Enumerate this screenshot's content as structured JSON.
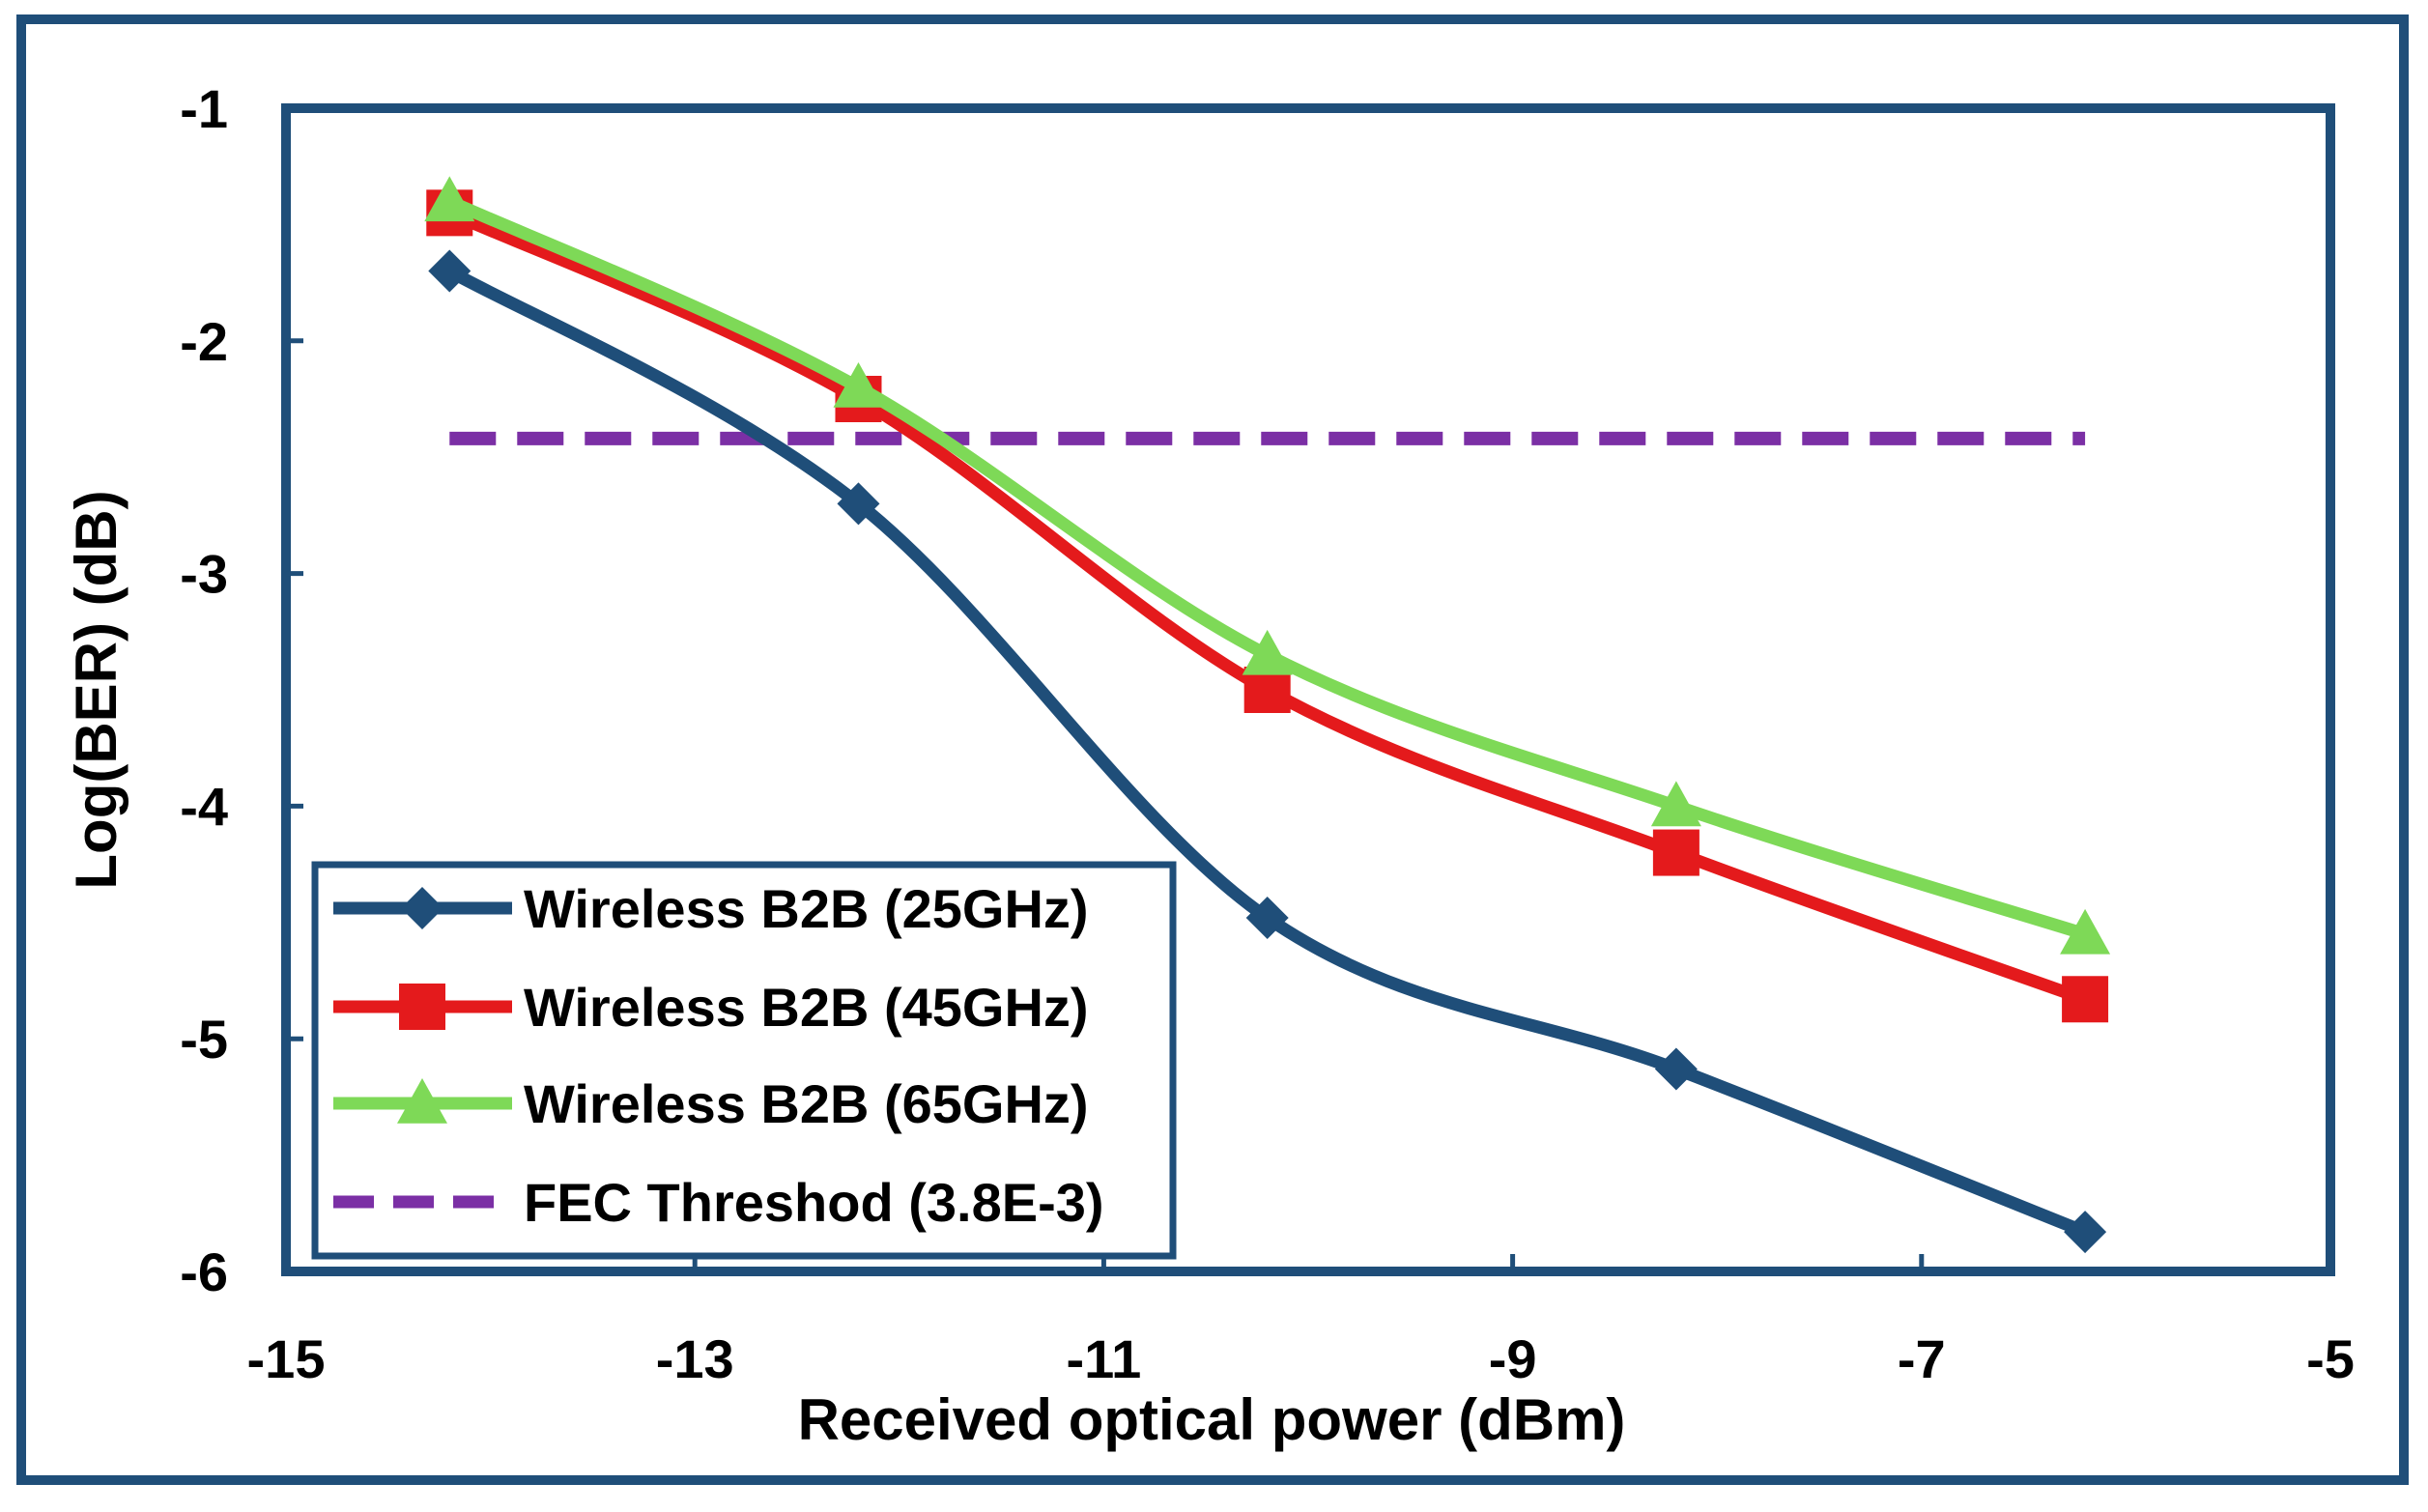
{
  "chart_data": {
    "type": "line",
    "title": "",
    "xlabel": "Received optical power (dBm)",
    "ylabel": "Log(BER) (dB)",
    "xlim": [
      -15,
      -5
    ],
    "ylim": [
      -6,
      -1
    ],
    "xticks": [
      -15,
      -13,
      -11,
      -9,
      -7,
      -5
    ],
    "yticks": [
      -1,
      -2,
      -3,
      -4,
      -5,
      -6
    ],
    "xtick_labels": [
      "-15",
      "-13",
      "-11",
      "-9",
      "-7",
      "-5"
    ],
    "ytick_labels": [
      "-1",
      "-2",
      "-3",
      "-4",
      "-5",
      "-6"
    ],
    "grid": false,
    "legend_position": "bottom-left",
    "series": [
      {
        "name": "Wireless B2B (25GHz)",
        "color": "#1f4e79",
        "marker": "diamond",
        "line_style": "solid",
        "x": [
          -14.2,
          -12.2,
          -10.2,
          -8.2,
          -6.2
        ],
        "y": [
          -1.7,
          -2.7,
          -4.48,
          -5.13,
          -5.83
        ]
      },
      {
        "name": "Wireless B2B (45GHz)",
        "color": "#e41a1c",
        "marker": "square",
        "line_style": "solid",
        "x": [
          -14.2,
          -12.2,
          -10.2,
          -8.2,
          -6.2
        ],
        "y": [
          -1.45,
          -2.25,
          -3.5,
          -4.2,
          -4.83
        ]
      },
      {
        "name": "Wireless B2B (65GHz)",
        "color": "#7ed957",
        "marker": "triangle",
        "line_style": "solid",
        "x": [
          -14.2,
          -12.2,
          -10.2,
          -8.2,
          -6.2
        ],
        "y": [
          -1.4,
          -2.2,
          -3.35,
          -4.0,
          -4.55
        ]
      },
      {
        "name": "FEC Threshod (3.8E-3)",
        "color": "#7b2fa5",
        "marker": "none",
        "line_style": "dashed",
        "x": [
          -14.2,
          -6.2
        ],
        "y": [
          -2.42,
          -2.42
        ]
      }
    ]
  }
}
